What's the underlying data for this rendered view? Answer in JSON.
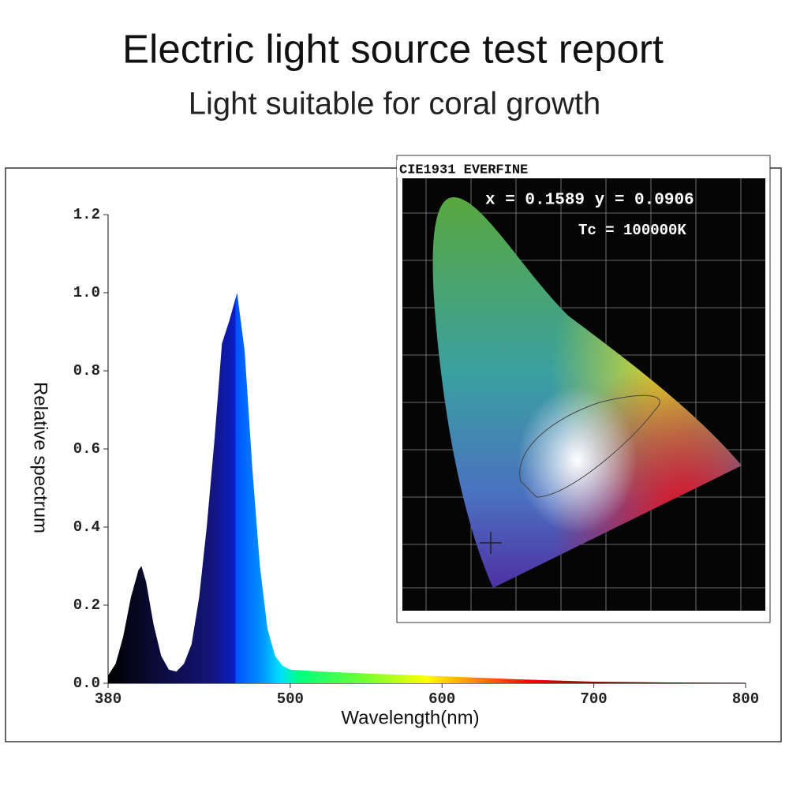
{
  "chart_data": {
    "type": "area",
    "title": "Electric light source test report",
    "subtitle": "Light suitable for coral growth",
    "x_label": "Wavelength(nm)",
    "y_label": "Relative spectrum",
    "x": [
      380,
      385,
      390,
      395,
      400,
      402,
      405,
      410,
      415,
      420,
      425,
      430,
      435,
      440,
      445,
      450,
      455,
      460,
      465,
      470,
      475,
      480,
      485,
      490,
      495,
      500,
      520,
      550,
      600,
      650,
      700,
      750,
      800
    ],
    "values": [
      0.02,
      0.05,
      0.12,
      0.22,
      0.29,
      0.3,
      0.26,
      0.15,
      0.07,
      0.035,
      0.03,
      0.05,
      0.1,
      0.22,
      0.4,
      0.62,
      0.87,
      0.93,
      1.0,
      0.85,
      0.55,
      0.3,
      0.14,
      0.07,
      0.045,
      0.035,
      0.03,
      0.025,
      0.018,
      0.01,
      0.004,
      0.002,
      0.001
    ],
    "xlim": [
      380,
      800
    ],
    "xticks": [
      380,
      500,
      600,
      700,
      800
    ],
    "ylim": [
      0,
      1.2
    ],
    "yticks": [
      {
        "value": 0,
        "label": "0.0"
      },
      0.2,
      0.4,
      0.6,
      0.8,
      {
        "value": 1,
        "label": "1.0"
      },
      1.2
    ],
    "annotations": [
      "CIE1931 EVERFINE",
      "x = 0.1589 y = 0.0906",
      "Tc = 100000K"
    ]
  }
}
